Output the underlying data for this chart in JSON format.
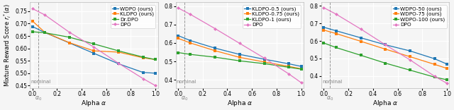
{
  "alpha": [
    0.0,
    0.1,
    0.3,
    0.5,
    0.7,
    0.9,
    1.0
  ],
  "alpha0": 0.05,
  "panel1": {
    "lines": [
      {
        "label": "WDPO (ours)",
        "color": "#1f77b4",
        "marker": "s",
        "values": [
          0.688,
          0.664,
          0.622,
          0.58,
          0.538,
          0.503,
          0.5
        ]
      },
      {
        "label": "KLDPO (ours)",
        "color": "#ff7f0e",
        "marker": "s",
        "values": [
          0.71,
          0.665,
          0.623,
          0.59,
          0.585,
          0.562,
          0.555
        ]
      },
      {
        "label": "Dr.DPO",
        "color": "#2ca02c",
        "marker": "s",
        "values": [
          0.667,
          0.663,
          0.645,
          0.618,
          0.59,
          0.565,
          0.555
        ]
      },
      {
        "label": "DPO",
        "color": "#e377c2",
        "marker": "D",
        "values": [
          0.76,
          0.735,
          0.665,
          0.605,
          0.54,
          0.478,
          0.45
        ]
      }
    ],
    "ylim": [
      0.44,
      0.785
    ],
    "yticks": [
      0.45,
      0.5,
      0.55,
      0.6,
      0.65,
      0.7,
      0.75
    ]
  },
  "panel2": {
    "lines": [
      {
        "label": "KLDPO-0.5 (ours)",
        "color": "#1f77b4",
        "marker": "s",
        "values": [
          0.64,
          0.613,
          0.572,
          0.538,
          0.512,
          0.487,
          0.473
        ]
      },
      {
        "label": "KLDPO-0.75 (ours)",
        "color": "#ff7f0e",
        "marker": "s",
        "values": [
          0.625,
          0.6,
          0.558,
          0.522,
          0.497,
          0.473,
          0.46
        ]
      },
      {
        "label": "KLDPO-1 (ours)",
        "color": "#2ca02c",
        "marker": "s",
        "values": [
          0.548,
          0.538,
          0.523,
          0.503,
          0.488,
          0.468,
          0.458
        ]
      },
      {
        "label": "DPO",
        "color": "#e377c2",
        "marker": "D",
        "values": [
          0.79,
          0.755,
          0.678,
          0.598,
          0.518,
          0.432,
          0.385
        ]
      }
    ],
    "ylim": [
      0.355,
      0.82
    ],
    "yticks": [
      0.4,
      0.5,
      0.6,
      0.7,
      0.8
    ]
  },
  "panel3": {
    "lines": [
      {
        "label": "WDPO-50 (ours)",
        "color": "#1f77b4",
        "marker": "s",
        "values": [
          0.678,
          0.658,
          0.618,
          0.578,
          0.543,
          0.498,
          0.468
        ]
      },
      {
        "label": "WDPO-75 (ours)",
        "color": "#ff7f0e",
        "marker": "s",
        "values": [
          0.662,
          0.642,
          0.598,
          0.553,
          0.51,
          0.466,
          0.443
        ]
      },
      {
        "label": "WDPO-100 (ours)",
        "color": "#2ca02c",
        "marker": "s",
        "values": [
          0.588,
          0.562,
          0.518,
          0.473,
          0.433,
          0.393,
          0.378
        ]
      },
      {
        "label": "DPO",
        "color": "#e377c2",
        "marker": "D",
        "values": [
          0.79,
          0.753,
          0.668,
          0.578,
          0.492,
          0.398,
          0.358
        ]
      }
    ],
    "ylim": [
      0.33,
      0.82
    ],
    "yticks": [
      0.4,
      0.5,
      0.6,
      0.7,
      0.8
    ]
  },
  "ylabel": "Mixture Reward Score $r_i^*(\\alpha)$",
  "xlabel": "Alpha $\\alpha$",
  "alpha0_label": "$\\alpha_0$",
  "nominal_label": "nominal",
  "bg_color": "#f5f5f5",
  "grid_color": "white",
  "legend_fontsize": 5.2,
  "axis_fontsize": 6.5,
  "tick_fontsize": 5.5,
  "ylabel_fontsize": 6.0
}
